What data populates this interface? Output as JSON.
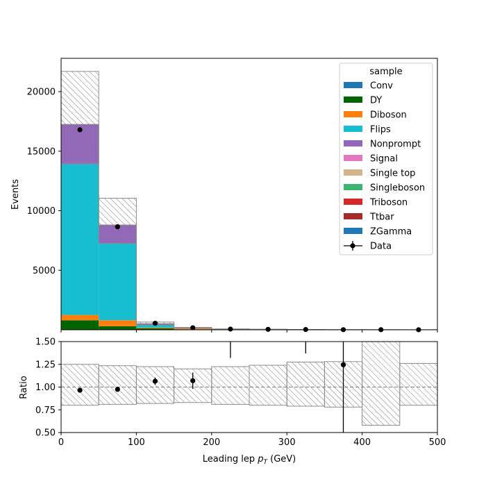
{
  "chart_data": [
    {
      "type": "bar",
      "stacked": true,
      "x_bin_edges": [
        0,
        50,
        100,
        150,
        200,
        250,
        300,
        350,
        400,
        450,
        500
      ],
      "ylabel": "Events",
      "xlim": [
        0,
        500
      ],
      "ylim": [
        0,
        22800
      ],
      "yticks": [
        5000,
        10000,
        15000,
        20000
      ],
      "legend": {
        "title": "sample",
        "placement": "top-right"
      },
      "series": [
        {
          "name": "Conv",
          "color": "#1f77b4",
          "values": [
            0,
            0,
            0,
            0,
            0,
            0,
            0,
            0,
            0,
            0
          ]
        },
        {
          "name": "DY",
          "color": "#006400",
          "values": [
            800,
            300,
            120,
            30,
            10,
            6,
            3,
            2,
            1,
            1
          ]
        },
        {
          "name": "Diboson",
          "color": "#ff7f0e",
          "values": [
            450,
            500,
            60,
            90,
            25,
            15,
            10,
            5,
            3,
            2
          ]
        },
        {
          "name": "Flips",
          "color": "#17becf",
          "values": [
            12650,
            6450,
            200,
            40,
            12,
            6,
            3,
            1,
            1,
            0
          ]
        },
        {
          "name": "Nonprompt",
          "color": "#9467bd",
          "values": [
            3350,
            1550,
            130,
            40,
            14,
            8,
            4,
            2,
            1,
            1
          ]
        },
        {
          "name": "Signal",
          "color": "#e377c2",
          "values": [
            0,
            0,
            0,
            0,
            0,
            0,
            0,
            0,
            0,
            0
          ]
        },
        {
          "name": "Single top",
          "color": "#d2b48c",
          "values": [
            0,
            0,
            0,
            0,
            0,
            0,
            0,
            0,
            0,
            0
          ]
        },
        {
          "name": "Singleboson",
          "color": "#3cb371",
          "values": [
            0,
            0,
            0,
            0,
            0,
            0,
            0,
            0,
            0,
            0
          ]
        },
        {
          "name": "Triboson",
          "color": "#d62728",
          "values": [
            0,
            0,
            0,
            0,
            0,
            0,
            0,
            0,
            0,
            0
          ]
        },
        {
          "name": "Ttbar",
          "color": "#a52a2a",
          "values": [
            0,
            0,
            0,
            0,
            0,
            0,
            0,
            0,
            0,
            0
          ]
        },
        {
          "name": "ZGamma",
          "color": "#1f77b4",
          "values": [
            0,
            0,
            0,
            0,
            0,
            0,
            0,
            0,
            0,
            0
          ]
        }
      ],
      "uncertainty_band": {
        "low": [
          14000,
          7250,
          400,
          120,
          40,
          25,
          15,
          7,
          4,
          3
        ],
        "high": [
          21700,
          11050,
          650,
          200,
          75,
          45,
          26,
          13,
          8,
          5
        ]
      },
      "data": {
        "name": "Data",
        "x": [
          25,
          75,
          125,
          175,
          225,
          275,
          325,
          375,
          425,
          475
        ],
        "y": [
          16800,
          8650,
          550,
          170,
          60,
          38,
          22,
          10,
          8,
          5
        ],
        "err": [
          130,
          93,
          23,
          13,
          8,
          6,
          5,
          3,
          3,
          2
        ]
      }
    },
    {
      "type": "scatter",
      "xlabel": "Leading lep p_T (GeV)",
      "ylabel": "Ratio",
      "xlim": [
        0,
        500
      ],
      "ylim": [
        0.5,
        1.5
      ],
      "xticks": [
        0,
        100,
        200,
        300,
        400,
        500
      ],
      "yticks": [
        0.5,
        0.75,
        1.0,
        1.25,
        1.5
      ],
      "reference_line": 1.0,
      "band": {
        "x_bin_edges": [
          0,
          50,
          100,
          150,
          200,
          250,
          300,
          350,
          400,
          450,
          500
        ],
        "low": [
          0.8,
          0.81,
          0.82,
          0.83,
          0.81,
          0.8,
          0.79,
          0.78,
          0.58,
          0.8
        ],
        "high": [
          1.25,
          1.235,
          1.225,
          1.2,
          1.225,
          1.24,
          1.275,
          1.28,
          1.5,
          1.26
        ]
      },
      "points": {
        "x": [
          25,
          75,
          125,
          175,
          225,
          275,
          325,
          375,
          425,
          475
        ],
        "y": [
          0.965,
          0.975,
          1.065,
          1.07,
          null,
          null,
          null,
          1.245,
          null,
          null
        ],
        "err": [
          0.01,
          0.012,
          0.04,
          0.09,
          0,
          0,
          0,
          0.9,
          0,
          0
        ],
        "err_low_visible": [
          null,
          null,
          null,
          null,
          1.32,
          null,
          1.37,
          null,
          null,
          null
        ]
      }
    }
  ]
}
